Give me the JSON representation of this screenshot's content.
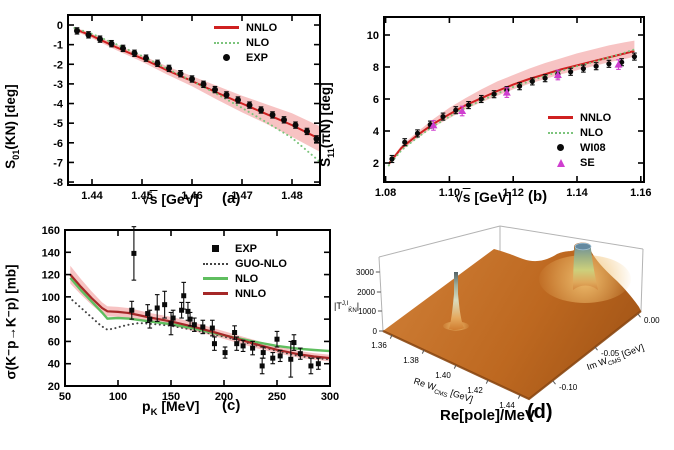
{
  "figure": {
    "background": "#ffffff"
  },
  "chart_data": [
    {
      "id": "a",
      "type": "line",
      "panel_label": "(a)",
      "xlabel": {
        "root": "√",
        "arg": "s",
        "unit": " [GeV]"
      },
      "ylabel": {
        "prefix": "S",
        "sub": "01",
        "suffix": "(KN) [deg]"
      },
      "xlim": [
        1.4352,
        1.4856
      ],
      "ylim": [
        -8.15,
        0.51
      ],
      "x_ticks": [
        "1.44",
        "1.45",
        "1.46",
        "1.47",
        "1.48"
      ],
      "y_ticks": [
        "0",
        "-1",
        "-2",
        "-3",
        "-4",
        "-5",
        "-6",
        "-7",
        "-8"
      ],
      "grid": false,
      "legend_position": "top-right",
      "legend": [
        {
          "label": "NNLO",
          "marker": "line",
          "color": "#cf2020"
        },
        {
          "label": "NLO",
          "marker": "dots",
          "color": "#7cc47c"
        },
        {
          "label": "EXP",
          "marker": "circle",
          "color": "#0a0a0a"
        }
      ],
      "band": {
        "color": "#f6b9b9",
        "x": [
          1.4365,
          1.44,
          1.445,
          1.45,
          1.455,
          1.46,
          1.465,
          1.47,
          1.475,
          1.48,
          1.4855
        ],
        "upper": [
          -0.1,
          -0.45,
          -1.0,
          -1.55,
          -2.1,
          -2.6,
          -3.1,
          -3.6,
          -4.05,
          -4.5,
          -5.15
        ],
        "lower": [
          -0.3,
          -0.67,
          -1.3,
          -1.87,
          -2.52,
          -3.12,
          -3.8,
          -4.45,
          -5.05,
          -5.7,
          -6.45
        ]
      },
      "series": [
        {
          "name": "NNLO",
          "type": "line",
          "color": "#cf2020",
          "width": 2,
          "x": [
            1.4365,
            1.44,
            1.445,
            1.45,
            1.455,
            1.46,
            1.465,
            1.47,
            1.475,
            1.48,
            1.4855
          ],
          "y": [
            -0.2,
            -0.55,
            -1.15,
            -1.7,
            -2.3,
            -2.85,
            -3.45,
            -4.0,
            -4.55,
            -5.1,
            -5.8
          ]
        },
        {
          "name": "NLO",
          "type": "dotted",
          "color": "#7cc47c",
          "width": 2,
          "x": [
            1.4365,
            1.44,
            1.445,
            1.45,
            1.455,
            1.46,
            1.465,
            1.47,
            1.475,
            1.48,
            1.4855
          ],
          "y": [
            -0.15,
            -0.45,
            -1.0,
            -1.58,
            -2.22,
            -2.85,
            -3.52,
            -4.22,
            -4.97,
            -5.75,
            -6.95
          ]
        },
        {
          "name": "EXP",
          "type": "points",
          "marker": "circle",
          "color": "#0a0a0a",
          "size": 3,
          "err": 0.16,
          "x": [
            1.437,
            1.4393,
            1.4416,
            1.4439,
            1.4462,
            1.4485,
            1.4508,
            1.4531,
            1.4554,
            1.4577,
            1.46,
            1.4623,
            1.4646,
            1.4669,
            1.4692,
            1.4715,
            1.4738,
            1.4761,
            1.4784,
            1.4807,
            1.483,
            1.4849
          ],
          "y": [
            -0.3,
            -0.5,
            -0.72,
            -0.95,
            -1.19,
            -1.44,
            -1.69,
            -1.95,
            -2.21,
            -2.48,
            -2.75,
            -3.02,
            -3.29,
            -3.56,
            -3.82,
            -4.08,
            -4.33,
            -4.58,
            -4.83,
            -5.1,
            -5.42,
            -5.8
          ]
        }
      ]
    },
    {
      "id": "b",
      "type": "line",
      "panel_label": "(b)",
      "xlabel": {
        "root": "√",
        "arg": "s",
        "unit": " [GeV]"
      },
      "ylabel": {
        "prefix": "S",
        "sub": "11",
        "suffix": "(πN) [deg]"
      },
      "xlim": [
        1.0795,
        1.161
      ],
      "ylim": [
        0.8125,
        11.125
      ],
      "x_ticks": [
        "1.08",
        "1.10",
        "1.12",
        "1.14",
        "1.16"
      ],
      "y_ticks": [
        "2",
        "4",
        "6",
        "8",
        "10"
      ],
      "grid": false,
      "legend_position": "bottom-right",
      "legend": [
        {
          "label": "NNLO",
          "marker": "line",
          "color": "#cf2020"
        },
        {
          "label": "NLO",
          "marker": "dots",
          "color": "#7cc47c"
        },
        {
          "label": "WI08",
          "marker": "circle",
          "color": "#0a0a0a"
        },
        {
          "label": "SE",
          "marker": "triangle",
          "color": "#cf3ecf"
        }
      ],
      "band": {
        "color": "#f6b9b9",
        "x": [
          1.081,
          1.085,
          1.09,
          1.095,
          1.1,
          1.105,
          1.11,
          1.115,
          1.12,
          1.125,
          1.13,
          1.135,
          1.14,
          1.145,
          1.15,
          1.155,
          1.158
        ],
        "upper": [
          2.05,
          3.1,
          3.95,
          4.75,
          5.45,
          6.05,
          6.6,
          7.1,
          7.5,
          7.9,
          8.25,
          8.55,
          8.85,
          9.1,
          9.35,
          9.55,
          9.65
        ],
        "lower": [
          1.8,
          2.8,
          3.55,
          4.25,
          4.8,
          5.35,
          5.8,
          6.2,
          6.6,
          6.95,
          7.25,
          7.55,
          7.8,
          8.05,
          8.3,
          8.5,
          8.65
        ]
      },
      "series": [
        {
          "name": "NNLO",
          "type": "line",
          "color": "#cf2020",
          "width": 2,
          "x": [
            1.081,
            1.085,
            1.09,
            1.095,
            1.1,
            1.105,
            1.11,
            1.115,
            1.12,
            1.125,
            1.13,
            1.135,
            1.14,
            1.145,
            1.15,
            1.155,
            1.158
          ],
          "y": [
            1.95,
            2.95,
            3.75,
            4.45,
            5.05,
            5.6,
            6.05,
            6.5,
            6.9,
            7.25,
            7.55,
            7.85,
            8.1,
            8.35,
            8.6,
            8.85,
            9.0
          ]
        },
        {
          "name": "NLO",
          "type": "dotted",
          "color": "#7cc47c",
          "width": 2,
          "x": [
            1.081,
            1.085,
            1.09,
            1.095,
            1.1,
            1.105,
            1.11,
            1.115,
            1.12,
            1.125,
            1.13,
            1.135,
            1.14,
            1.145,
            1.15,
            1.155,
            1.158
          ],
          "y": [
            1.85,
            2.8,
            3.6,
            4.3,
            4.9,
            5.45,
            5.9,
            6.35,
            6.75,
            7.1,
            7.45,
            7.75,
            8.05,
            8.3,
            8.6,
            8.9,
            9.1
          ]
        },
        {
          "name": "WI08",
          "type": "points",
          "marker": "circle",
          "color": "#0a0a0a",
          "size": 2.6,
          "err": 0.22,
          "x": [
            1.082,
            1.086,
            1.09,
            1.094,
            1.098,
            1.102,
            1.106,
            1.11,
            1.114,
            1.118,
            1.122,
            1.126,
            1.13,
            1.134,
            1.138,
            1.142,
            1.146,
            1.15,
            1.154,
            1.158
          ],
          "y": [
            2.25,
            3.3,
            3.85,
            4.4,
            4.9,
            5.3,
            5.62,
            6.0,
            6.3,
            6.55,
            6.8,
            7.1,
            7.3,
            7.55,
            7.7,
            7.9,
            8.05,
            8.2,
            8.3,
            8.65
          ]
        },
        {
          "name": "SE",
          "type": "points",
          "marker": "triangle",
          "color": "#cf3ecf",
          "size": 4,
          "err": 0.3,
          "x": [
            1.095,
            1.104,
            1.118,
            1.134,
            1.153
          ],
          "y": [
            4.35,
            5.25,
            6.4,
            7.5,
            8.15
          ]
        }
      ]
    },
    {
      "id": "c",
      "type": "line",
      "panel_label": "(c)",
      "xlabel": {
        "prefix": "p",
        "sub": "K",
        "suffix": " [MeV]"
      },
      "ylabel": "σ(K⁻p→K⁻p) [mb]",
      "xlim": [
        50,
        300
      ],
      "ylim": [
        20,
        160
      ],
      "x_ticks": [
        "50",
        "100",
        "150",
        "200",
        "250",
        "300"
      ],
      "y_ticks": [
        "20",
        "40",
        "60",
        "80",
        "100",
        "120",
        "140",
        "160"
      ],
      "grid": false,
      "legend_position": "top-right",
      "legend": [
        {
          "label": "EXP",
          "marker": "square",
          "color": "#0a0a0a"
        },
        {
          "label": "GUO-NLO",
          "marker": "dots",
          "color": "#444444"
        },
        {
          "label": "NLO",
          "marker": "line",
          "color": "#5fbe5f"
        },
        {
          "label": "NNLO",
          "marker": "line",
          "color": "#a52828"
        }
      ],
      "band": {
        "color": "#f6b9b9",
        "x": [
          55,
          65,
          75,
          85,
          90,
          100,
          110,
          130,
          150,
          170,
          190,
          210,
          230,
          250,
          270,
          285,
          300
        ],
        "upper": [
          128,
          116,
          105,
          95,
          91.5,
          91,
          90,
          85.5,
          82,
          77.5,
          72,
          66.5,
          61,
          55.5,
          51.5,
          49.5,
          48
        ],
        "lower": [
          112,
          102,
          93,
          85,
          82.5,
          82,
          81,
          77.5,
          74,
          69.5,
          65,
          59.5,
          54,
          49.5,
          45.5,
          43.5,
          42
        ]
      },
      "series": [
        {
          "name": "GUO-NLO",
          "type": "dotted",
          "color": "#444444",
          "width": 2,
          "x": [
            57,
            63,
            70,
            77,
            84,
            90,
            96,
            103,
            110,
            120,
            135,
            150,
            170,
            190,
            210,
            230,
            250,
            270,
            285,
            300
          ],
          "y": [
            97,
            92,
            86,
            80,
            74,
            70.5,
            71.5,
            73.5,
            75,
            76.5,
            75.5,
            74,
            70.5,
            66.5,
            62,
            56.5,
            51.5,
            47,
            45,
            44
          ]
        },
        {
          "name": "NLO",
          "type": "line",
          "color": "#5fbe5f",
          "width": 2.4,
          "x": [
            55,
            65,
            75,
            85,
            90,
            100,
            110,
            130,
            150,
            170,
            190,
            210,
            230,
            250,
            270,
            285,
            300
          ],
          "y": [
            117,
            106,
            96,
            86,
            80.5,
            81,
            80.5,
            78,
            75.5,
            72,
            67.5,
            63.5,
            59.5,
            56,
            53.5,
            52.3,
            51.3
          ]
        },
        {
          "name": "NNLO",
          "type": "line",
          "color": "#a52828",
          "width": 2.2,
          "x": [
            55,
            65,
            75,
            85,
            90,
            100,
            110,
            130,
            150,
            170,
            190,
            210,
            230,
            250,
            270,
            285,
            300
          ],
          "y": [
            120,
            109,
            99,
            90,
            87,
            86.5,
            85.5,
            81.5,
            78,
            73.5,
            68.5,
            63,
            57.5,
            52.5,
            48.5,
            46.5,
            45
          ]
        },
        {
          "name": "EXP",
          "type": "points",
          "marker": "square",
          "color": "#0a0a0a",
          "size": 5,
          "err": [
            8,
            24,
            8,
            8,
            12,
            12,
            10,
            7,
            7,
            12,
            8,
            6,
            6,
            6,
            7,
            6,
            5,
            6,
            6,
            5,
            6,
            7,
            5,
            5,
            7,
            5,
            16,
            7,
            5,
            7,
            5
          ],
          "x": [
            113,
            115,
            128,
            130,
            137,
            144,
            150,
            152,
            160,
            162,
            166,
            168,
            172,
            180,
            189,
            191,
            201,
            210,
            212,
            218,
            227,
            236,
            237,
            246,
            250,
            253,
            263,
            266,
            272,
            282,
            289
          ],
          "y": [
            88,
            139,
            85,
            80,
            90,
            93,
            76,
            81,
            88,
            101,
            87,
            80,
            75,
            73,
            72,
            58,
            50,
            68,
            58,
            56,
            54,
            38,
            50,
            45,
            62,
            47,
            44,
            59,
            49,
            38,
            40
          ]
        }
      ]
    },
    {
      "id": "d",
      "type": "surface3d",
      "panel_label": "(d)",
      "bottom_label": "Re[pole]/MeV",
      "zlabel": {
        "t1": "|T",
        "sup": "J,I",
        "sub": "K̄N",
        "t2": "|"
      },
      "xlabel": {
        "prefix": "Re W",
        "sub": "CMS",
        "suffix": " [GeV]"
      },
      "ylabel": {
        "prefix": "Im W",
        "sub": "CMS",
        "suffix": " [GeV]"
      },
      "x_ticks": [
        "1.36",
        "1.38",
        "1.40",
        "1.42",
        "1.44"
      ],
      "y_ticks": [
        "0.00",
        "-0.05",
        "-0.10"
      ],
      "z_ticks": [
        "0",
        "1000",
        "2000",
        "3000"
      ],
      "x_range": [
        1.355,
        1.445
      ],
      "y_range": [
        -0.125,
        0.0
      ],
      "z_range": [
        0,
        3000
      ],
      "peaks": [
        {
          "re": 1.39,
          "im": -0.05,
          "amplitude": 3000
        },
        {
          "re": 1.425,
          "im": -0.015,
          "amplitude": 3200
        }
      ],
      "colors": {
        "surface_top": "#d08038",
        "surface_mid": "#bd6820",
        "surface_dark": "#9c5014",
        "peak_top": "#64899f",
        "peak_mid": "#ccd07c",
        "glow": "#f0c070",
        "edge": "#8a4712",
        "frame": "#b3b3b3"
      }
    }
  ]
}
